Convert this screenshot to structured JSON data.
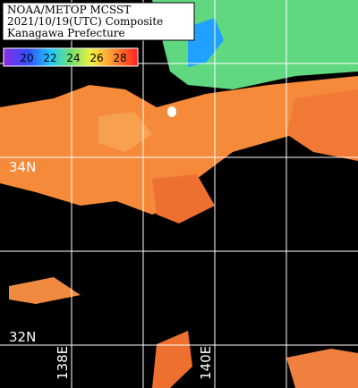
{
  "header": {
    "lines": [
      "NOAA/METOP MCSST",
      "2021/10/19(UTC) Composite",
      "Kanagawa Prefecture"
    ]
  },
  "colorbar": {
    "ticks": [
      "20",
      "22",
      "24",
      "26",
      "28"
    ]
  },
  "grid": {
    "lat_labels": [
      "34N",
      "32N"
    ],
    "lon_labels": [
      "138E",
      "140E"
    ]
  }
}
